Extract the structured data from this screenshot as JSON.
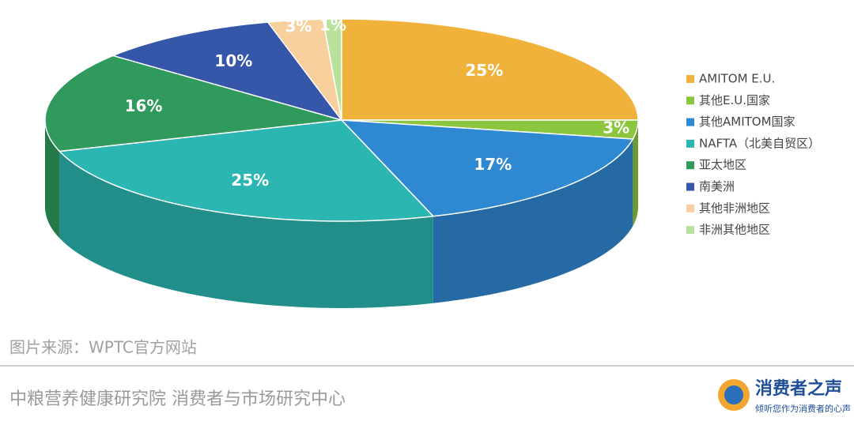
{
  "chart_data": {
    "type": "pie",
    "categories": [
      "AMITOM E.U.",
      "其他E.U.国家",
      "其他AMITOM国家",
      "NAFTA（北美自贸区）",
      "亚太地区",
      "南美洲",
      "其他非洲地区",
      "非洲其他地区"
    ],
    "values": [
      25,
      3,
      17,
      25,
      16,
      10,
      3,
      1
    ],
    "value_labels": [
      "25%",
      "3%",
      "17%",
      "25%",
      "16%",
      "10%",
      "3%",
      "1%"
    ],
    "colors": [
      "#f0b23b",
      "#8cc63f",
      "#2f88d2",
      "#2bb6b1",
      "#2f9a5c",
      "#3656a9",
      "#f8d09d",
      "#b8e19b"
    ]
  },
  "source": "图片来源：WPTC官方网站",
  "footer": {
    "org": "中粮营养健康研究院 消费者与市场研究中心",
    "logo_title": "消费者之声",
    "logo_subtitle": "倾听您作为消费者的心声"
  }
}
